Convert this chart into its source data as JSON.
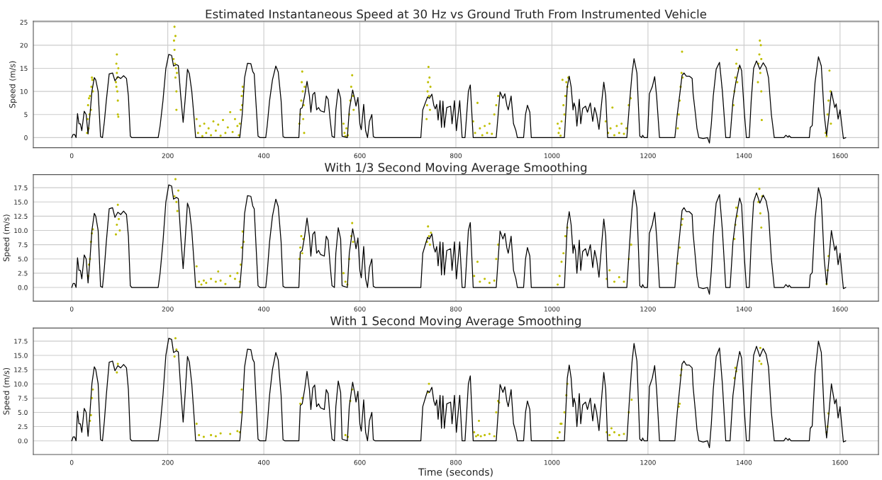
{
  "chart_data": [
    {
      "type": "line",
      "title": "Estimated Instantaneous Speed at 30 Hz vs Ground Truth From Instrumented Vehicle",
      "ylabel": "Speed (m/s)",
      "xlim": [
        -80,
        1680
      ],
      "xticks": [
        0,
        200,
        400,
        600,
        800,
        1000,
        1200,
        1400,
        1600
      ],
      "ylim": [
        -2.2,
        25.2
      ],
      "yticks": [
        0,
        5,
        10,
        15,
        20,
        25
      ],
      "grid": true,
      "series": [
        {
          "type": "scatter",
          "color": "#bfbf00",
          "x": [
            32,
            33,
            34,
            35,
            36,
            37,
            38,
            40,
            41,
            42,
            43,
            44,
            92,
            93,
            94,
            94,
            95,
            95,
            96,
            96,
            97,
            93,
            97,
            212,
            213,
            214,
            214,
            215,
            216,
            216,
            217,
            218,
            218,
            219,
            260,
            263,
            267,
            272,
            276,
            280,
            285,
            290,
            295,
            300,
            305,
            310,
            315,
            320,
            325,
            330,
            335,
            340,
            345,
            348,
            350,
            352,
            354,
            355,
            356,
            357,
            474,
            476,
            478,
            479,
            480,
            481,
            482,
            483,
            484,
            485,
            566,
            568,
            570,
            572,
            575,
            578,
            580,
            582,
            584,
            586,
            587,
            739,
            740,
            741,
            742,
            743,
            744,
            745,
            746,
            747,
            836,
            840,
            845,
            850,
            855,
            860,
            865,
            870,
            875,
            880,
            884,
            888,
            1012,
            1014,
            1016,
            1018,
            1020,
            1022,
            1024,
            1026,
            1028,
            1030,
            1032,
            1034,
            1112,
            1117,
            1122,
            1126,
            1130,
            1135,
            1140,
            1145,
            1150,
            1155,
            1160,
            1164,
            1262,
            1264,
            1266,
            1268,
            1270,
            1271,
            1272,
            1378,
            1380,
            1382,
            1384,
            1385,
            1386,
            1388,
            1429,
            1430,
            1432,
            1433,
            1434,
            1435,
            1436,
            1437,
            1436,
            1570,
            1572,
            1574,
            1576,
            1578,
            1580,
            1581
          ],
          "values": [
            1,
            4,
            7,
            2,
            8.5,
            5,
            9,
            6,
            11,
            13,
            12.5,
            10,
            12,
            16,
            14,
            18,
            10,
            13,
            8,
            5,
            15,
            11,
            4.5,
            17,
            21,
            24,
            19,
            16,
            22,
            13,
            15,
            10,
            6,
            14,
            4,
            1,
            2.5,
            0.3,
            3,
            1,
            2,
            0.5,
            3.5,
            1.5,
            2.8,
            0.4,
            3.8,
            1,
            2.2,
            5.5,
            1.2,
            4,
            2.5,
            0.5,
            3,
            6,
            9,
            7,
            11,
            10,
            3,
            5,
            8,
            12,
            14.3,
            10,
            4,
            7,
            1,
            11,
            3,
            1,
            0.3,
            2,
            0.5,
            5,
            8,
            11,
            13.5,
            9,
            6,
            4,
            7,
            10,
            12,
            15.3,
            9,
            13,
            6,
            11,
            3.5,
            1,
            7.5,
            2,
            0.5,
            2.5,
            1,
            3,
            0.8,
            5,
            7,
            9,
            3,
            1,
            2,
            0.4,
            3.5,
            12.5,
            7,
            5,
            9,
            12,
            11,
            13,
            3.5,
            1,
            2,
            6.5,
            0.5,
            2.5,
            1,
            3,
            0.8,
            2,
            7,
            8.5,
            2,
            5,
            8,
            11,
            14,
            18.6,
            13,
            7,
            10,
            13,
            16,
            19,
            12,
            15,
            12,
            16,
            18,
            21,
            14,
            20,
            10,
            3.8,
            17,
            1,
            0.3,
            5,
            8,
            14.5,
            10,
            3
          ]
        },
        {
          "color": "#000000",
          "x": [
            0,
            3,
            6,
            9,
            12,
            15,
            18,
            21,
            26,
            30,
            34,
            38,
            42,
            47,
            50,
            55,
            60,
            64,
            68,
            72,
            78,
            85,
            90,
            96,
            102,
            108,
            114,
            118,
            122,
            125,
            180,
            184,
            190,
            196,
            202,
            208,
            212,
            218,
            222,
            227,
            232,
            236,
            241,
            245,
            250,
            255,
            258,
            350,
            355,
            360,
            366,
            373,
            377,
            380,
            384,
            388,
            392,
            404,
            407,
            412,
            418,
            425,
            430,
            436,
            440,
            444,
            473,
            476,
            480,
            485,
            490,
            495,
            498,
            502,
            506,
            510,
            514,
            518,
            526,
            530,
            534,
            538,
            542,
            547,
            550,
            555,
            560,
            563,
            574,
            578,
            585,
            589,
            592,
            596,
            600,
            603,
            608,
            612,
            616,
            620,
            625,
            628,
            632,
            727,
            731,
            737,
            741,
            745,
            750,
            754,
            757,
            760,
            763,
            767,
            770,
            773,
            776,
            781,
            789,
            792,
            797,
            801,
            808,
            813,
            819,
            826,
            830,
            836,
            884,
            892,
            898,
            902,
            906,
            909,
            915,
            920,
            925,
            928,
            941,
            945,
            949,
            954,
            957,
            1026,
            1032,
            1036,
            1040,
            1044,
            1046,
            1049,
            1052,
            1057,
            1060,
            1064,
            1070,
            1074,
            1080,
            1085,
            1089,
            1093,
            1098,
            1104,
            1108,
            1112,
            1116,
            1156,
            1162,
            1167,
            1171,
            1177,
            1183,
            1187,
            1189,
            1192,
            1199,
            1203,
            1209,
            1214,
            1218,
            1224,
            1256,
            1261,
            1267,
            1271,
            1275,
            1280,
            1286,
            1292,
            1294,
            1299,
            1302,
            1306,
            1315,
            1324,
            1328,
            1332,
            1336,
            1342,
            1349,
            1355,
            1362,
            1371,
            1377,
            1383,
            1391,
            1395,
            1401,
            1405,
            1411,
            1415,
            1420,
            1426,
            1433,
            1440,
            1446,
            1451,
            1457,
            1463,
            1483,
            1487,
            1492,
            1494,
            1498,
            1536,
            1538,
            1542,
            1548,
            1555,
            1561,
            1567,
            1572,
            1577,
            1582,
            1586,
            1589,
            1592,
            1596,
            1600,
            1605,
            1607,
            1612
          ],
          "values": [
            0,
            0.7,
            0.7,
            0,
            5.2,
            3,
            3,
            1.5,
            5.7,
            5,
            0.8,
            5,
            10,
            13,
            12.5,
            10,
            0.2,
            0,
            3.5,
            8,
            13.8,
            14,
            12.3,
            13.2,
            12.8,
            13.4,
            12.8,
            9,
            0.3,
            0,
            0,
            2.5,
            8,
            15,
            18,
            17.8,
            15.5,
            15.8,
            15.6,
            9,
            3.3,
            8,
            14.8,
            13.8,
            10,
            4,
            0,
            0,
            5,
            13,
            16.1,
            16,
            14.3,
            13.8,
            7,
            0.3,
            0,
            0,
            2.5,
            8,
            12.5,
            15.5,
            14.2,
            8,
            0.2,
            0,
            0,
            6.2,
            6.5,
            9,
            12.2,
            9,
            5.5,
            9.3,
            9.8,
            6,
            6.5,
            5.8,
            5.5,
            9,
            8.3,
            4,
            0.3,
            0,
            6,
            10.5,
            8.5,
            0.3,
            0,
            6,
            10.3,
            8.5,
            6.8,
            8.7,
            3,
            1.7,
            7.2,
            1.5,
            0,
            3.5,
            5,
            0.2,
            0,
            0,
            6,
            7.7,
            8.8,
            8.5,
            9.4,
            7,
            6.2,
            7.2,
            3.8,
            8,
            2.2,
            7.9,
            2.2,
            6.5,
            6.8,
            3,
            8,
            1.5,
            8,
            0,
            0,
            10,
            11.4,
            0,
            0,
            9.9,
            8.5,
            9.5,
            7,
            6,
            9,
            3,
            1.5,
            0,
            0,
            5,
            7,
            5.5,
            0,
            0,
            11,
            13.3,
            11,
            6,
            7.5,
            6.5,
            2.5,
            8.3,
            3,
            6.3,
            6.8,
            5.5,
            7.5,
            3.5,
            6.5,
            5,
            1.8,
            8,
            12,
            9,
            0,
            0,
            8,
            14,
            17.1,
            14,
            0.3,
            0,
            0.5,
            0,
            0,
            9.5,
            11,
            13.2,
            9,
            0,
            0,
            5,
            10,
            13.5,
            14,
            13.3,
            13.3,
            12.8,
            9.5,
            5,
            2,
            0,
            -0.2,
            0,
            -1.2,
            3,
            9,
            14.8,
            16.3,
            10,
            0,
            0,
            8,
            12,
            15.7,
            14.5,
            5,
            0,
            0,
            8,
            15,
            16.6,
            14.8,
            16.2,
            15.2,
            13,
            5,
            0,
            0,
            0.5,
            0.1,
            0.4,
            0,
            0,
            2.2,
            2.6,
            12,
            17.5,
            15.5,
            5,
            0.5,
            5,
            10,
            8,
            6.5,
            7.3,
            4,
            6,
            1.5,
            -0.2,
            0
          ]
        }
      ]
    },
    {
      "type": "line",
      "title": "With 1/3 Second Moving Average Smoothing",
      "ylabel": "Speed (m/s)",
      "xlim": [
        -80,
        1680
      ],
      "xticks": [
        0,
        200,
        400,
        600,
        800,
        1000,
        1200,
        1400,
        1600
      ],
      "ylim": [
        -2.4,
        19.8
      ],
      "yticks": [
        {
          "value": 0,
          "label": "0.0"
        },
        {
          "value": 2.5,
          "label": "2.5"
        },
        {
          "value": 5,
          "label": "5.0"
        },
        {
          "value": 7.5,
          "label": "7.5"
        },
        {
          "value": 10,
          "label": "10.0"
        },
        {
          "value": 12.5,
          "label": "12.5"
        },
        {
          "value": 15,
          "label": "15.0"
        },
        {
          "value": 17.5,
          "label": "17.5"
        }
      ],
      "grid": true,
      "series": [
        {
          "type": "scatter",
          "color": "#bfbf00",
          "x": [
            34,
            36,
            38,
            40,
            42,
            44,
            92,
            94,
            96,
            98,
            100,
            214,
            216,
            218,
            220,
            222,
            260,
            265,
            270,
            275,
            280,
            290,
            300,
            305,
            310,
            320,
            330,
            340,
            345,
            350,
            352,
            354,
            356,
            358,
            474,
            476,
            478,
            480,
            482,
            566,
            570,
            574,
            578,
            582,
            584,
            586,
            740,
            742,
            744,
            746,
            748,
            838,
            845,
            850,
            860,
            870,
            880,
            884,
            888,
            1012,
            1016,
            1020,
            1024,
            1028,
            1032,
            1114,
            1120,
            1130,
            1140,
            1150,
            1160,
            1165,
            1262,
            1266,
            1270,
            1272,
            1380,
            1382,
            1384,
            1386,
            1430,
            1432,
            1434,
            1436,
            1438,
            1572,
            1574,
            1576
          ],
          "values": [
            2,
            4,
            5,
            8,
            9.5,
            10.2,
            9.3,
            11,
            14.5,
            12,
            10,
            16,
            19,
            15,
            13.4,
            17,
            3.7,
            1,
            0.5,
            1.2,
            0.8,
            1.5,
            1,
            2.8,
            1.2,
            0.6,
            2,
            1.5,
            2.5,
            1,
            4,
            7,
            9.8,
            8,
            5,
            7,
            9,
            6,
            8.5,
            2.5,
            1,
            0.5,
            5,
            9,
            11.3,
            8,
            8,
            10.7,
            9,
            7.5,
            9.6,
            2,
            4.5,
            1,
            1.5,
            0.8,
            1.2,
            5,
            7.5,
            0.5,
            2,
            4.5,
            6,
            9,
            10.5,
            1.5,
            3,
            1,
            1.8,
            1,
            5,
            7.5,
            4.2,
            7,
            11,
            12,
            8.5,
            11,
            14,
            12.5,
            15,
            17.3,
            13,
            10.5,
            16,
            0.6,
            3,
            5.5
          ]
        },
        {
          "color": "#000000",
          "x": [
            0,
            3,
            6,
            9,
            12,
            15,
            18,
            21,
            26,
            30,
            34,
            38,
            42,
            47,
            50,
            55,
            60,
            64,
            68,
            72,
            78,
            85,
            90,
            96,
            102,
            108,
            114,
            118,
            122,
            125,
            180,
            184,
            190,
            196,
            202,
            208,
            212,
            218,
            222,
            227,
            232,
            236,
            241,
            245,
            250,
            255,
            258,
            350,
            355,
            360,
            366,
            373,
            377,
            380,
            384,
            388,
            392,
            404,
            407,
            412,
            418,
            425,
            430,
            436,
            440,
            444,
            473,
            476,
            480,
            485,
            490,
            495,
            498,
            502,
            506,
            510,
            514,
            518,
            526,
            530,
            534,
            538,
            542,
            547,
            550,
            555,
            560,
            563,
            574,
            578,
            585,
            589,
            592,
            596,
            600,
            603,
            608,
            612,
            616,
            620,
            625,
            628,
            632,
            727,
            731,
            737,
            741,
            745,
            750,
            754,
            757,
            760,
            763,
            767,
            770,
            773,
            776,
            781,
            789,
            792,
            797,
            801,
            808,
            813,
            819,
            826,
            830,
            836,
            884,
            892,
            898,
            902,
            906,
            909,
            915,
            920,
            925,
            928,
            941,
            945,
            949,
            954,
            957,
            1026,
            1032,
            1036,
            1040,
            1044,
            1046,
            1049,
            1052,
            1057,
            1060,
            1064,
            1070,
            1074,
            1080,
            1085,
            1089,
            1093,
            1098,
            1104,
            1108,
            1112,
            1116,
            1156,
            1162,
            1167,
            1171,
            1177,
            1183,
            1187,
            1189,
            1192,
            1199,
            1203,
            1209,
            1214,
            1218,
            1224,
            1256,
            1261,
            1267,
            1271,
            1275,
            1280,
            1286,
            1292,
            1294,
            1299,
            1302,
            1306,
            1315,
            1324,
            1328,
            1332,
            1336,
            1342,
            1349,
            1355,
            1362,
            1371,
            1377,
            1383,
            1391,
            1395,
            1401,
            1405,
            1411,
            1415,
            1420,
            1426,
            1433,
            1440,
            1446,
            1451,
            1457,
            1463,
            1483,
            1487,
            1492,
            1494,
            1498,
            1536,
            1538,
            1542,
            1548,
            1555,
            1561,
            1567,
            1572,
            1577,
            1582,
            1586,
            1589,
            1592,
            1596,
            1600,
            1605,
            1607,
            1612
          ],
          "values": [
            0,
            0.7,
            0.7,
            0,
            5.2,
            3,
            3,
            1.5,
            5.7,
            5,
            0.8,
            5,
            10,
            13,
            12.5,
            10,
            0.2,
            0,
            3.5,
            8,
            13.8,
            14,
            12.3,
            13.2,
            12.8,
            13.4,
            12.8,
            9,
            0.3,
            0,
            0,
            2.5,
            8,
            15,
            18,
            17.8,
            15.5,
            15.8,
            15.6,
            9,
            3.3,
            8,
            14.8,
            13.8,
            10,
            4,
            0,
            0,
            5,
            13,
            16.1,
            16,
            14.3,
            13.8,
            7,
            0.3,
            0,
            0,
            2.5,
            8,
            12.5,
            15.5,
            14.2,
            8,
            0.2,
            0,
            0,
            6.2,
            6.5,
            9,
            12.2,
            9,
            5.5,
            9.3,
            9.8,
            6,
            6.5,
            5.8,
            5.5,
            9,
            8.3,
            4,
            0.3,
            0,
            6,
            10.5,
            8.5,
            0.3,
            0,
            6,
            10.3,
            8.5,
            6.8,
            8.7,
            3,
            1.7,
            7.2,
            1.5,
            0,
            3.5,
            5,
            0.2,
            0,
            0,
            6,
            7.7,
            8.8,
            8.5,
            9.4,
            7,
            6.2,
            7.2,
            3.8,
            8,
            2.2,
            7.9,
            2.2,
            6.5,
            6.8,
            3,
            8,
            1.5,
            8,
            0,
            0,
            10,
            11.4,
            0,
            0,
            9.9,
            8.5,
            9.5,
            7,
            6,
            9,
            3,
            1.5,
            0,
            0,
            5,
            7,
            5.5,
            0,
            0,
            11,
            13.3,
            11,
            6,
            7.5,
            6.5,
            2.5,
            8.3,
            3,
            6.3,
            6.8,
            5.5,
            7.5,
            3.5,
            6.5,
            5,
            1.8,
            8,
            12,
            9,
            0,
            0,
            8,
            14,
            17.1,
            14,
            0.3,
            0,
            0.5,
            0,
            0,
            9.5,
            11,
            13.2,
            9,
            0,
            0,
            5,
            10,
            13.5,
            14,
            13.3,
            13.3,
            12.8,
            9.5,
            5,
            2,
            0,
            -0.2,
            0,
            -1.2,
            3,
            9,
            14.8,
            16.3,
            10,
            0,
            0,
            8,
            12,
            15.7,
            14.5,
            5,
            0,
            0,
            8,
            15,
            16.6,
            14.8,
            16.2,
            15.2,
            13,
            5,
            0,
            0,
            0.5,
            0.1,
            0.4,
            0,
            0,
            2.2,
            2.6,
            12,
            17.5,
            15.5,
            5,
            0.5,
            5,
            10,
            8,
            6.5,
            7.3,
            4,
            6,
            1.5,
            -0.2,
            0
          ]
        }
      ]
    },
    {
      "type": "line",
      "title": "With 1 Second Moving Average Smoothing",
      "xlabel": "Time (seconds)",
      "ylabel": "Speed (m/s)",
      "xlim": [
        -80,
        1680
      ],
      "xticks": [
        0,
        200,
        400,
        600,
        800,
        1000,
        1200,
        1400,
        1600
      ],
      "ylim": [
        -2.4,
        19.8
      ],
      "yticks": [
        {
          "value": 0,
          "label": "0.0"
        },
        {
          "value": 2.5,
          "label": "2.5"
        },
        {
          "value": 5,
          "label": "5.0"
        },
        {
          "value": 7.5,
          "label": "7.5"
        },
        {
          "value": 10,
          "label": "10.0"
        },
        {
          "value": 12.5,
          "label": "12.5"
        },
        {
          "value": 15,
          "label": "15.0"
        },
        {
          "value": 17.5,
          "label": "17.5"
        }
      ],
      "grid": true,
      "series": [
        {
          "type": "scatter",
          "color": "#bfbf00",
          "x": [
            38,
            40,
            42,
            44,
            94,
            96,
            214,
            216,
            218,
            260,
            265,
            275,
            290,
            300,
            310,
            330,
            345,
            350,
            352,
            354,
            476,
            480,
            570,
            575,
            580,
            584,
            742,
            744,
            838,
            842,
            846,
            848,
            852,
            860,
            870,
            880,
            884,
            888,
            890,
            1012,
            1016,
            1018,
            1020,
            1026,
            1030,
            1032,
            1114,
            1120,
            1124,
            1130,
            1140,
            1150,
            1160,
            1166,
            1264,
            1266,
            1268,
            1270,
            1380,
            1382,
            1384,
            1432,
            1434,
            1436,
            1572,
            1574,
            1576
          ],
          "values": [
            3.5,
            4.5,
            7.5,
            9,
            12,
            13.5,
            14.8,
            18,
            16,
            3,
            1,
            0.7,
            1,
            0.8,
            1.3,
            1.2,
            1.7,
            1.5,
            5,
            9,
            6.5,
            7.5,
            1,
            0.7,
            7,
            9,
            8.5,
            10,
            1.5,
            0.8,
            1,
            3.5,
            0.8,
            1,
            1.2,
            0.8,
            5,
            7,
            6.7,
            0.5,
            1.5,
            3,
            3,
            5,
            8,
            10,
            1.5,
            1,
            2.2,
            1.5,
            1,
            1.2,
            5,
            7.2,
            6,
            6.5,
            11.5,
            12.5,
            11,
            12.8,
            12.2,
            14,
            16.3,
            13.5,
            1.5,
            2.5,
            4.8
          ]
        },
        {
          "type": "line",
          "color": "#000000",
          "x": [
            0,
            3,
            6,
            9,
            12,
            15,
            18,
            21,
            26,
            30,
            34,
            38,
            42,
            47,
            50,
            55,
            60,
            64,
            68,
            72,
            78,
            85,
            90,
            96,
            102,
            108,
            114,
            118,
            122,
            125,
            180,
            184,
            190,
            196,
            202,
            208,
            212,
            218,
            222,
            227,
            232,
            236,
            241,
            245,
            250,
            255,
            258,
            350,
            355,
            360,
            366,
            373,
            377,
            380,
            384,
            388,
            392,
            404,
            407,
            412,
            418,
            425,
            430,
            436,
            440,
            444,
            473,
            476,
            480,
            485,
            490,
            495,
            498,
            502,
            506,
            510,
            514,
            518,
            526,
            530,
            534,
            538,
            542,
            547,
            550,
            555,
            560,
            563,
            574,
            578,
            585,
            589,
            592,
            596,
            600,
            603,
            608,
            612,
            616,
            620,
            625,
            628,
            632,
            727,
            731,
            737,
            741,
            745,
            750,
            754,
            757,
            760,
            763,
            767,
            770,
            773,
            776,
            781,
            789,
            792,
            797,
            801,
            808,
            813,
            819,
            826,
            830,
            836,
            884,
            892,
            898,
            902,
            906,
            909,
            915,
            920,
            925,
            928,
            941,
            945,
            949,
            954,
            957,
            1026,
            1032,
            1036,
            1040,
            1044,
            1046,
            1049,
            1052,
            1057,
            1060,
            1064,
            1070,
            1074,
            1080,
            1085,
            1089,
            1093,
            1098,
            1104,
            1108,
            1112,
            1116,
            1156,
            1162,
            1167,
            1171,
            1177,
            1183,
            1187,
            1189,
            1192,
            1199,
            1203,
            1209,
            1214,
            1218,
            1224,
            1256,
            1261,
            1267,
            1271,
            1275,
            1280,
            1286,
            1292,
            1294,
            1299,
            1302,
            1306,
            1315,
            1324,
            1328,
            1332,
            1336,
            1342,
            1349,
            1355,
            1362,
            1371,
            1377,
            1383,
            1391,
            1395,
            1401,
            1405,
            1411,
            1415,
            1420,
            1426,
            1433,
            1440,
            1446,
            1451,
            1457,
            1463,
            1483,
            1487,
            1492,
            1494,
            1498,
            1536,
            1538,
            1542,
            1548,
            1555,
            1561,
            1567,
            1572,
            1577,
            1582,
            1586,
            1589,
            1592,
            1596,
            1600,
            1605,
            1607,
            1612
          ],
          "values": [
            0,
            0.7,
            0.7,
            0,
            5.2,
            3,
            3,
            1.5,
            5.7,
            5,
            0.8,
            5,
            10,
            13,
            12.5,
            10,
            0.2,
            0,
            3.5,
            8,
            13.8,
            14,
            12.3,
            13.2,
            12.8,
            13.4,
            12.8,
            9,
            0.3,
            0,
            0,
            2.5,
            8,
            15,
            18,
            17.8,
            15.5,
            15.8,
            15.6,
            9,
            3.3,
            8,
            14.8,
            13.8,
            10,
            4,
            0,
            0,
            5,
            13,
            16.1,
            16,
            14.3,
            13.8,
            7,
            0.3,
            0,
            0,
            2.5,
            8,
            12.5,
            15.5,
            14.2,
            8,
            0.2,
            0,
            0,
            6.2,
            6.5,
            9,
            12.2,
            9,
            5.5,
            9.3,
            9.8,
            6,
            6.5,
            5.8,
            5.5,
            9,
            8.3,
            4,
            0.3,
            0,
            6,
            10.5,
            8.5,
            0.3,
            0,
            6,
            10.3,
            8.5,
            6.8,
            8.7,
            3,
            1.7,
            7.2,
            1.5,
            0,
            3.5,
            5,
            0.2,
            0,
            0,
            6,
            7.7,
            8.8,
            8.5,
            9.4,
            7,
            6.2,
            7.2,
            3.8,
            8,
            2.2,
            7.9,
            2.2,
            6.5,
            6.8,
            3,
            8,
            1.5,
            8,
            0,
            0,
            10,
            11.4,
            0,
            0,
            9.9,
            8.5,
            9.5,
            7,
            6,
            9,
            3,
            1.5,
            0,
            0,
            5,
            7,
            5.5,
            0,
            0,
            11,
            13.3,
            11,
            6,
            7.5,
            6.5,
            2.5,
            8.3,
            3,
            6.3,
            6.8,
            5.5,
            7.5,
            3.5,
            6.5,
            5,
            1.8,
            8,
            12,
            9,
            0,
            0,
            8,
            14,
            17.1,
            14,
            0.3,
            0,
            0.5,
            0,
            0,
            9.5,
            11,
            13.2,
            9,
            0,
            0,
            5,
            10,
            13.5,
            14,
            13.3,
            13.3,
            12.8,
            9.5,
            5,
            2,
            0,
            -0.2,
            0,
            -1.2,
            3,
            9,
            14.8,
            16.3,
            10,
            0,
            0,
            8,
            12,
            15.7,
            14.5,
            5,
            0,
            0,
            8,
            15,
            16.6,
            14.8,
            16.2,
            15.2,
            13,
            5,
            0,
            0,
            0.5,
            0.1,
            0.4,
            0,
            0,
            2.2,
            2.6,
            12,
            17.5,
            15.5,
            5,
            0.5,
            5,
            10,
            8,
            6.5,
            7.3,
            4,
            6,
            1.5,
            -0.2,
            0
          ]
        }
      ]
    }
  ]
}
